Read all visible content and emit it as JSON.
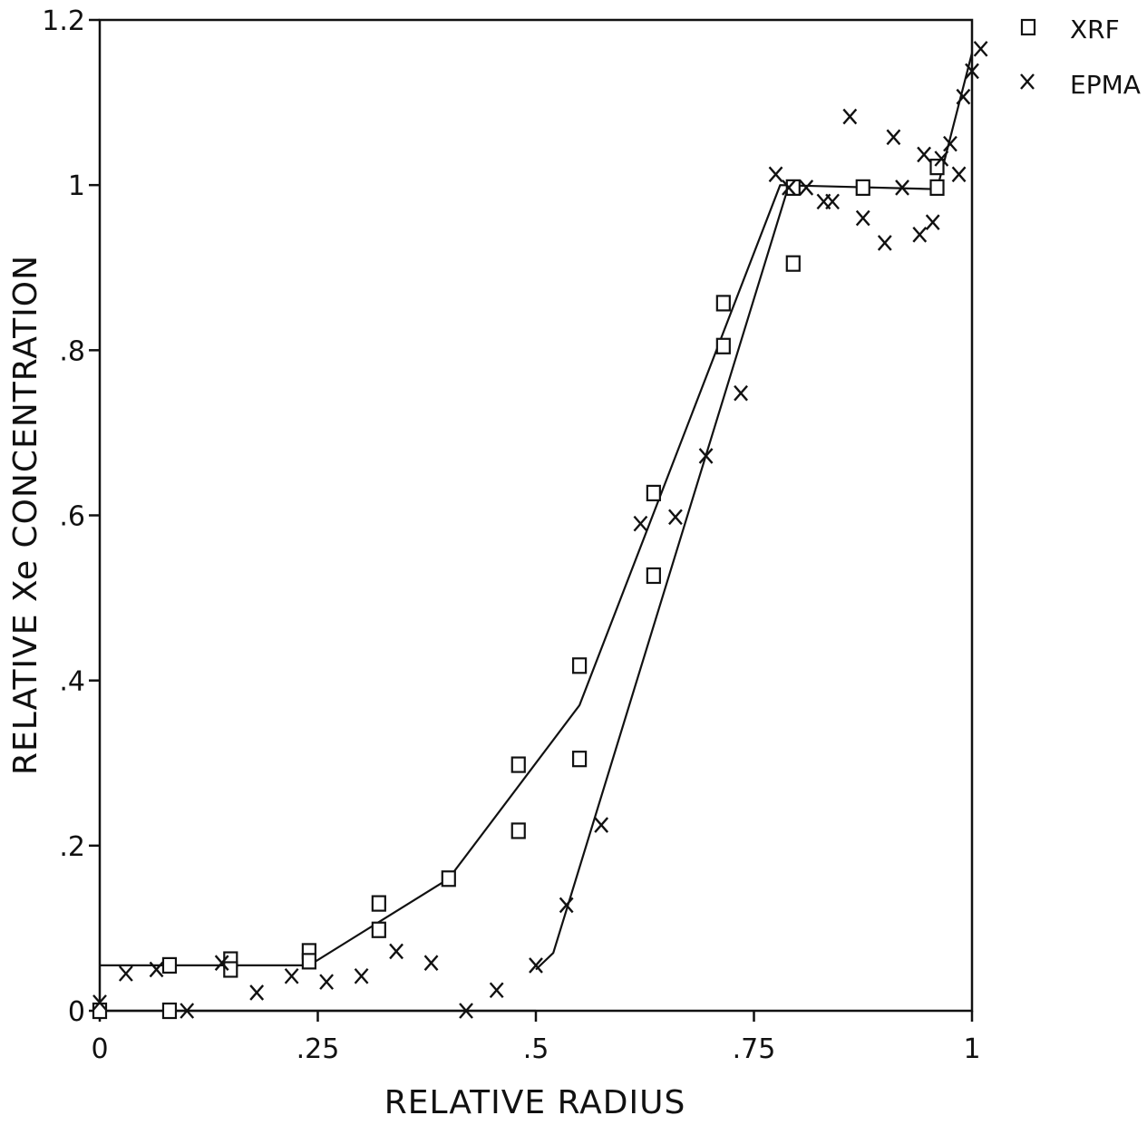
{
  "chart_data": {
    "type": "scatter",
    "xlabel": "RELATIVE RADIUS",
    "ylabel": "RELATIVE Xe CONCENTRATION",
    "xlim": [
      0,
      1
    ],
    "ylim": [
      0,
      1.2
    ],
    "x_ticks": [
      {
        "value": 0,
        "label": "0"
      },
      {
        "value": 0.25,
        "label": ".25"
      },
      {
        "value": 0.5,
        "label": ".5"
      },
      {
        "value": 0.75,
        "label": ".75"
      },
      {
        "value": 1,
        "label": "1"
      }
    ],
    "y_ticks": [
      {
        "value": 0,
        "label": "0"
      },
      {
        "value": 0.2,
        "label": ".2"
      },
      {
        "value": 0.4,
        "label": ".4"
      },
      {
        "value": 0.6,
        "label": ".6"
      },
      {
        "value": 0.8,
        "label": ".8"
      },
      {
        "value": 1,
        "label": "1"
      },
      {
        "value": 1.2,
        "label": "1.2"
      }
    ],
    "grid": false,
    "legend_position": "top-right",
    "series": [
      {
        "name": "XRF",
        "marker": "square",
        "points": [
          [
            0,
            0
          ],
          [
            0.08,
            0.055
          ],
          [
            0.08,
            0.0
          ],
          [
            0.15,
            0.062
          ],
          [
            0.15,
            0.05
          ],
          [
            0.24,
            0.072
          ],
          [
            0.24,
            0.06
          ],
          [
            0.32,
            0.13
          ],
          [
            0.32,
            0.098
          ],
          [
            0.4,
            0.16
          ],
          [
            0.48,
            0.298
          ],
          [
            0.48,
            0.218
          ],
          [
            0.55,
            0.418
          ],
          [
            0.55,
            0.305
          ],
          [
            0.635,
            0.627
          ],
          [
            0.635,
            0.527
          ],
          [
            0.715,
            0.857
          ],
          [
            0.715,
            0.805
          ],
          [
            0.795,
            0.997
          ],
          [
            0.795,
            0.905
          ],
          [
            0.875,
            0.997
          ],
          [
            0.96,
            0.997
          ],
          [
            0.96,
            1.022
          ]
        ],
        "fit_line": [
          [
            0,
            0.055
          ],
          [
            0.24,
            0.055
          ],
          [
            0.4,
            0.16
          ],
          [
            0.55,
            0.37
          ],
          [
            0.78,
            1.0
          ],
          [
            0.96,
            0.995
          ],
          [
            1.0,
            1.16
          ]
        ]
      },
      {
        "name": "EPMA",
        "marker": "x",
        "points": [
          [
            0,
            0.01
          ],
          [
            0.03,
            0.045
          ],
          [
            0.065,
            0.05
          ],
          [
            0.1,
            0.0
          ],
          [
            0.14,
            0.058
          ],
          [
            0.18,
            0.022
          ],
          [
            0.22,
            0.042
          ],
          [
            0.26,
            0.035
          ],
          [
            0.3,
            0.042
          ],
          [
            0.34,
            0.072
          ],
          [
            0.38,
            0.058
          ],
          [
            0.42,
            0.0
          ],
          [
            0.455,
            0.025
          ],
          [
            0.5,
            0.055
          ],
          [
            0.535,
            0.128
          ],
          [
            0.575,
            0.225
          ],
          [
            0.62,
            0.59
          ],
          [
            0.66,
            0.598
          ],
          [
            0.695,
            0.672
          ],
          [
            0.735,
            0.748
          ],
          [
            0.775,
            1.013
          ],
          [
            0.79,
            0.997
          ],
          [
            0.81,
            0.997
          ],
          [
            0.83,
            0.98
          ],
          [
            0.84,
            0.98
          ],
          [
            0.86,
            1.083
          ],
          [
            0.875,
            0.96
          ],
          [
            0.9,
            0.93
          ],
          [
            0.91,
            1.058
          ],
          [
            0.92,
            0.997
          ],
          [
            0.94,
            0.94
          ],
          [
            0.945,
            1.037
          ],
          [
            0.955,
            0.955
          ],
          [
            0.965,
            1.032
          ],
          [
            0.975,
            1.05
          ],
          [
            0.985,
            1.013
          ],
          [
            0.99,
            1.107
          ],
          [
            1.0,
            1.138
          ],
          [
            1.01,
            1.165
          ]
        ],
        "fit_line": [
          [
            0,
            0.0
          ],
          [
            0.5,
            0.0
          ]
        ],
        "fit_line_2": [
          [
            0.5,
            0.05
          ],
          [
            0.52,
            0.07
          ],
          [
            0.79,
            1.0
          ]
        ]
      }
    ]
  }
}
